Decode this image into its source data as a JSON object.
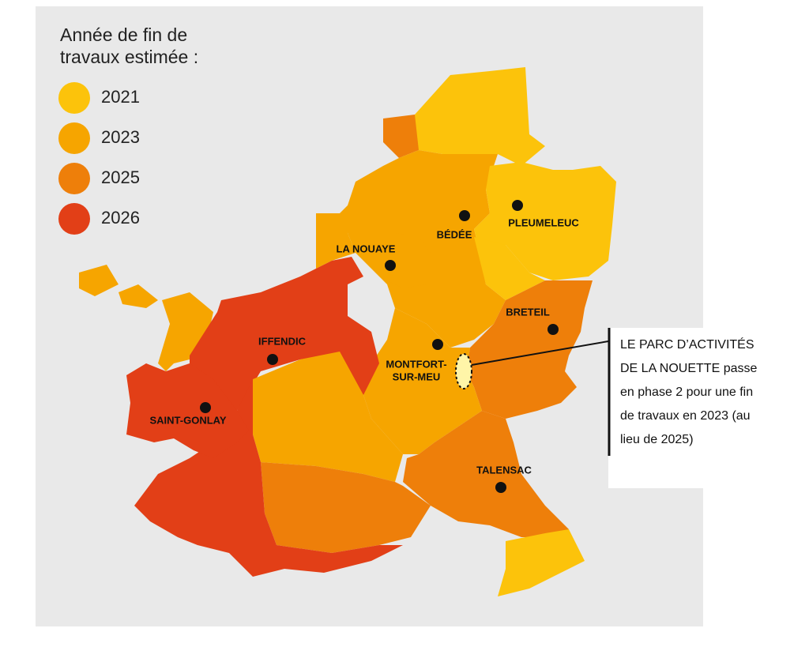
{
  "legend": {
    "title_lines": [
      "Année de fin de",
      "travaux estimée :"
    ],
    "items": [
      {
        "label": "2021",
        "color": "#fcc30b"
      },
      {
        "label": "2023",
        "color": "#f6a500"
      },
      {
        "label": "2025",
        "color": "#ee7f0a"
      },
      {
        "label": "2026",
        "color": "#e23f17"
      }
    ]
  },
  "towns": [
    {
      "name_lines": [
        "BÉDÉE"
      ]
    },
    {
      "name_lines": [
        "PLEUMELEUC"
      ]
    },
    {
      "name_lines": [
        "LA NOUAYE"
      ]
    },
    {
      "name_lines": [
        "BRETEIL"
      ]
    },
    {
      "name_lines": [
        "IFFENDIC"
      ]
    },
    {
      "name_lines": [
        "MONTFORT-",
        "SUR-MEU"
      ]
    },
    {
      "name_lines": [
        "SAINT-GONLAY"
      ]
    },
    {
      "name_lines": [
        "TALENSAC"
      ]
    }
  ],
  "annotation": {
    "lines": [
      "LE PARC D’ACTIVITÉS",
      "DE LA NOUETTE passe",
      "en phase 2 pour une fin",
      "de travaux en 2023 (au",
      "lieu de 2025)"
    ]
  }
}
